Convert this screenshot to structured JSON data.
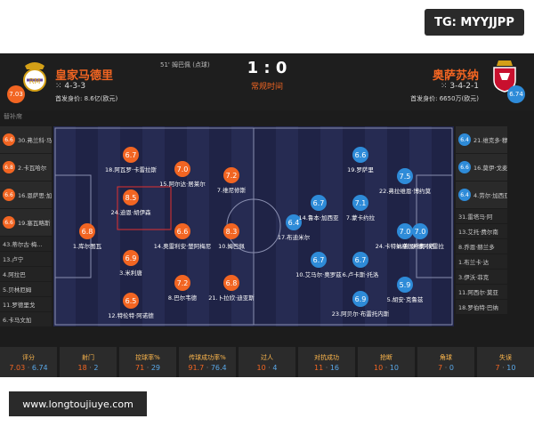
{
  "overlay_tag": "TG: MYYJJPP",
  "watermark": "www.longtoujiuye.com",
  "match": {
    "event": "51' 姆巴佩 (点球)",
    "score": "1 : 0",
    "period": "常规时间",
    "home": {
      "name": "皇家马德里",
      "formation": "4-3-3",
      "market_value": "首发身价: 8.6亿(欧元)",
      "rating": "7.03",
      "color": "#f26522"
    },
    "away": {
      "name": "奥萨苏纳",
      "formation": "3-4-2-1",
      "market_value": "首发身价: 6650万(欧元)",
      "rating": "6.74",
      "color": "#2e8bd8"
    }
  },
  "bench_label": "替补席",
  "home_bench": [
    {
      "rating": "6.6",
      "name": "30.弗兰科·马斯..."
    },
    {
      "rating": "6.8",
      "name": "2.卡瓦哈尔"
    },
    {
      "rating": "6.6",
      "name": "16.恩萨思·加西亚"
    },
    {
      "rating": "6.6",
      "name": "19.塞瓦略斯"
    },
    {
      "name": "43.蒂尔古·梅..."
    },
    {
      "name": "13.卢宁"
    },
    {
      "name": "4.阿拉巴"
    },
    {
      "name": "5.贝林厄姆"
    },
    {
      "name": "11.罗德里戈"
    },
    {
      "name": "6.卡马文加"
    }
  ],
  "away_bench": [
    {
      "rating": "6.4",
      "name": "21.维克多·穆尼..."
    },
    {
      "rating": "6.6",
      "name": "16.莫伊·戈麦斯"
    },
    {
      "rating": "6.4",
      "name": "4.劳尔·加西亚"
    },
    {
      "name": "31.雷塔马·阿"
    },
    {
      "name": "13.艾托·费尔南"
    },
    {
      "name": "8.乔恩·赫兰多"
    },
    {
      "name": "1.布兰卡·达"
    },
    {
      "name": "3.伊沃·菲克"
    },
    {
      "name": "11.阿西尔·莫亚"
    },
    {
      "name": "18.罗伯特·巴纳"
    }
  ],
  "home_players": [
    {
      "rating": "6.8",
      "name": "1.库尔图瓦"
    },
    {
      "rating": "6.7",
      "name": "18.阿瓦罗·卡雷拉斯"
    },
    {
      "rating": "8.5",
      "name": "24.迪恩·胡伊森"
    },
    {
      "rating": "6.9",
      "name": "3.米利唐"
    },
    {
      "rating": "6.5",
      "name": "12.特伦特·阿诺德"
    },
    {
      "rating": "7.0",
      "name": "15.阿尔达·居莱尔"
    },
    {
      "rating": "6.6",
      "name": "14.奥雷利安·楚阿梅尼"
    },
    {
      "rating": "7.2",
      "name": "8.巴尔韦德"
    },
    {
      "rating": "7.2",
      "name": "7.维尼修斯"
    },
    {
      "rating": "8.3",
      "name": "10.姆巴佩"
    },
    {
      "rating": "6.8",
      "name": "21.卜拉欣·迪亚斯"
    }
  ],
  "away_players": [
    {
      "rating": "7.0",
      "name": "1.塞尔希奥·埃雷拉"
    },
    {
      "rating": "6.4",
      "name": "17.布迪米尔"
    },
    {
      "rating": "6.7",
      "name": "10.艾马尔·奥罗兹"
    },
    {
      "rating": "6.7",
      "name": "14.鲁本·加西亚"
    },
    {
      "rating": "6.9",
      "name": "23.阿贝尔·布雷托内斯"
    },
    {
      "rating": "6.7",
      "name": "6.卢卡斯·托洛"
    },
    {
      "rating": "7.1",
      "name": "7.蒙卡约拉"
    },
    {
      "rating": "6.6",
      "name": "19.罗萨里"
    },
    {
      "rating": "5.9",
      "name": "5.胡安·克鲁兹"
    },
    {
      "rating": "7.5",
      "name": "22.弗拉维恩·博约莫"
    },
    {
      "rating": "7.0",
      "name": "24.卡特纳·布恩·博阿塔"
    }
  ],
  "stats": [
    {
      "label": "评分",
      "home": "7.03",
      "away": "6.74"
    },
    {
      "label": "射门",
      "home": "18",
      "away": "2"
    },
    {
      "label": "控球率%",
      "home": "71",
      "away": "29"
    },
    {
      "label": "传球成功率%",
      "home": "91.7",
      "away": "76.4"
    },
    {
      "label": "过人",
      "home": "10",
      "away": "4"
    },
    {
      "label": "对抗成功",
      "home": "11",
      "away": "16"
    },
    {
      "label": "抢断",
      "home": "10",
      "away": "10"
    },
    {
      "label": "角球",
      "home": "7",
      "away": "0"
    },
    {
      "label": "失误",
      "home": "7",
      "away": "10"
    }
  ]
}
